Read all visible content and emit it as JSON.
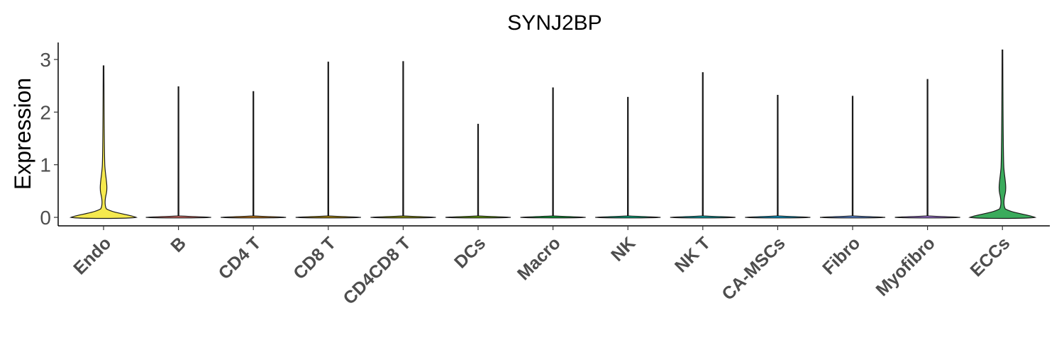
{
  "chart_data": {
    "type": "violin",
    "title": "SYNJ2BP",
    "xlabel": "",
    "ylabel": "Expression",
    "ylim": [
      -0.15,
      3.3
    ],
    "yticks": [
      "0",
      "1",
      "2",
      "3"
    ],
    "categories": [
      "Endo",
      "B",
      "CD4 T",
      "CD8 T",
      "CD4CD8 T",
      "DCs",
      "Macro",
      "NK",
      "NK T",
      "CA-MSCs",
      "Fibro",
      "Myofibro",
      "ECCs"
    ],
    "max_values": [
      2.88,
      2.48,
      2.39,
      2.95,
      2.96,
      1.77,
      2.46,
      2.28,
      2.75,
      2.32,
      2.3,
      2.62,
      3.18
    ],
    "fill_colors": [
      "#f5e94e",
      "#f8766d",
      "#e5870d",
      "#c79a00",
      "#a0a500",
      "#6bb100",
      "#00ba38",
      "#00c08b",
      "#00bfc4",
      "#00b4f0",
      "#619cff",
      "#b983ff",
      "#3bab5c"
    ],
    "grid": false,
    "legend": "none"
  }
}
